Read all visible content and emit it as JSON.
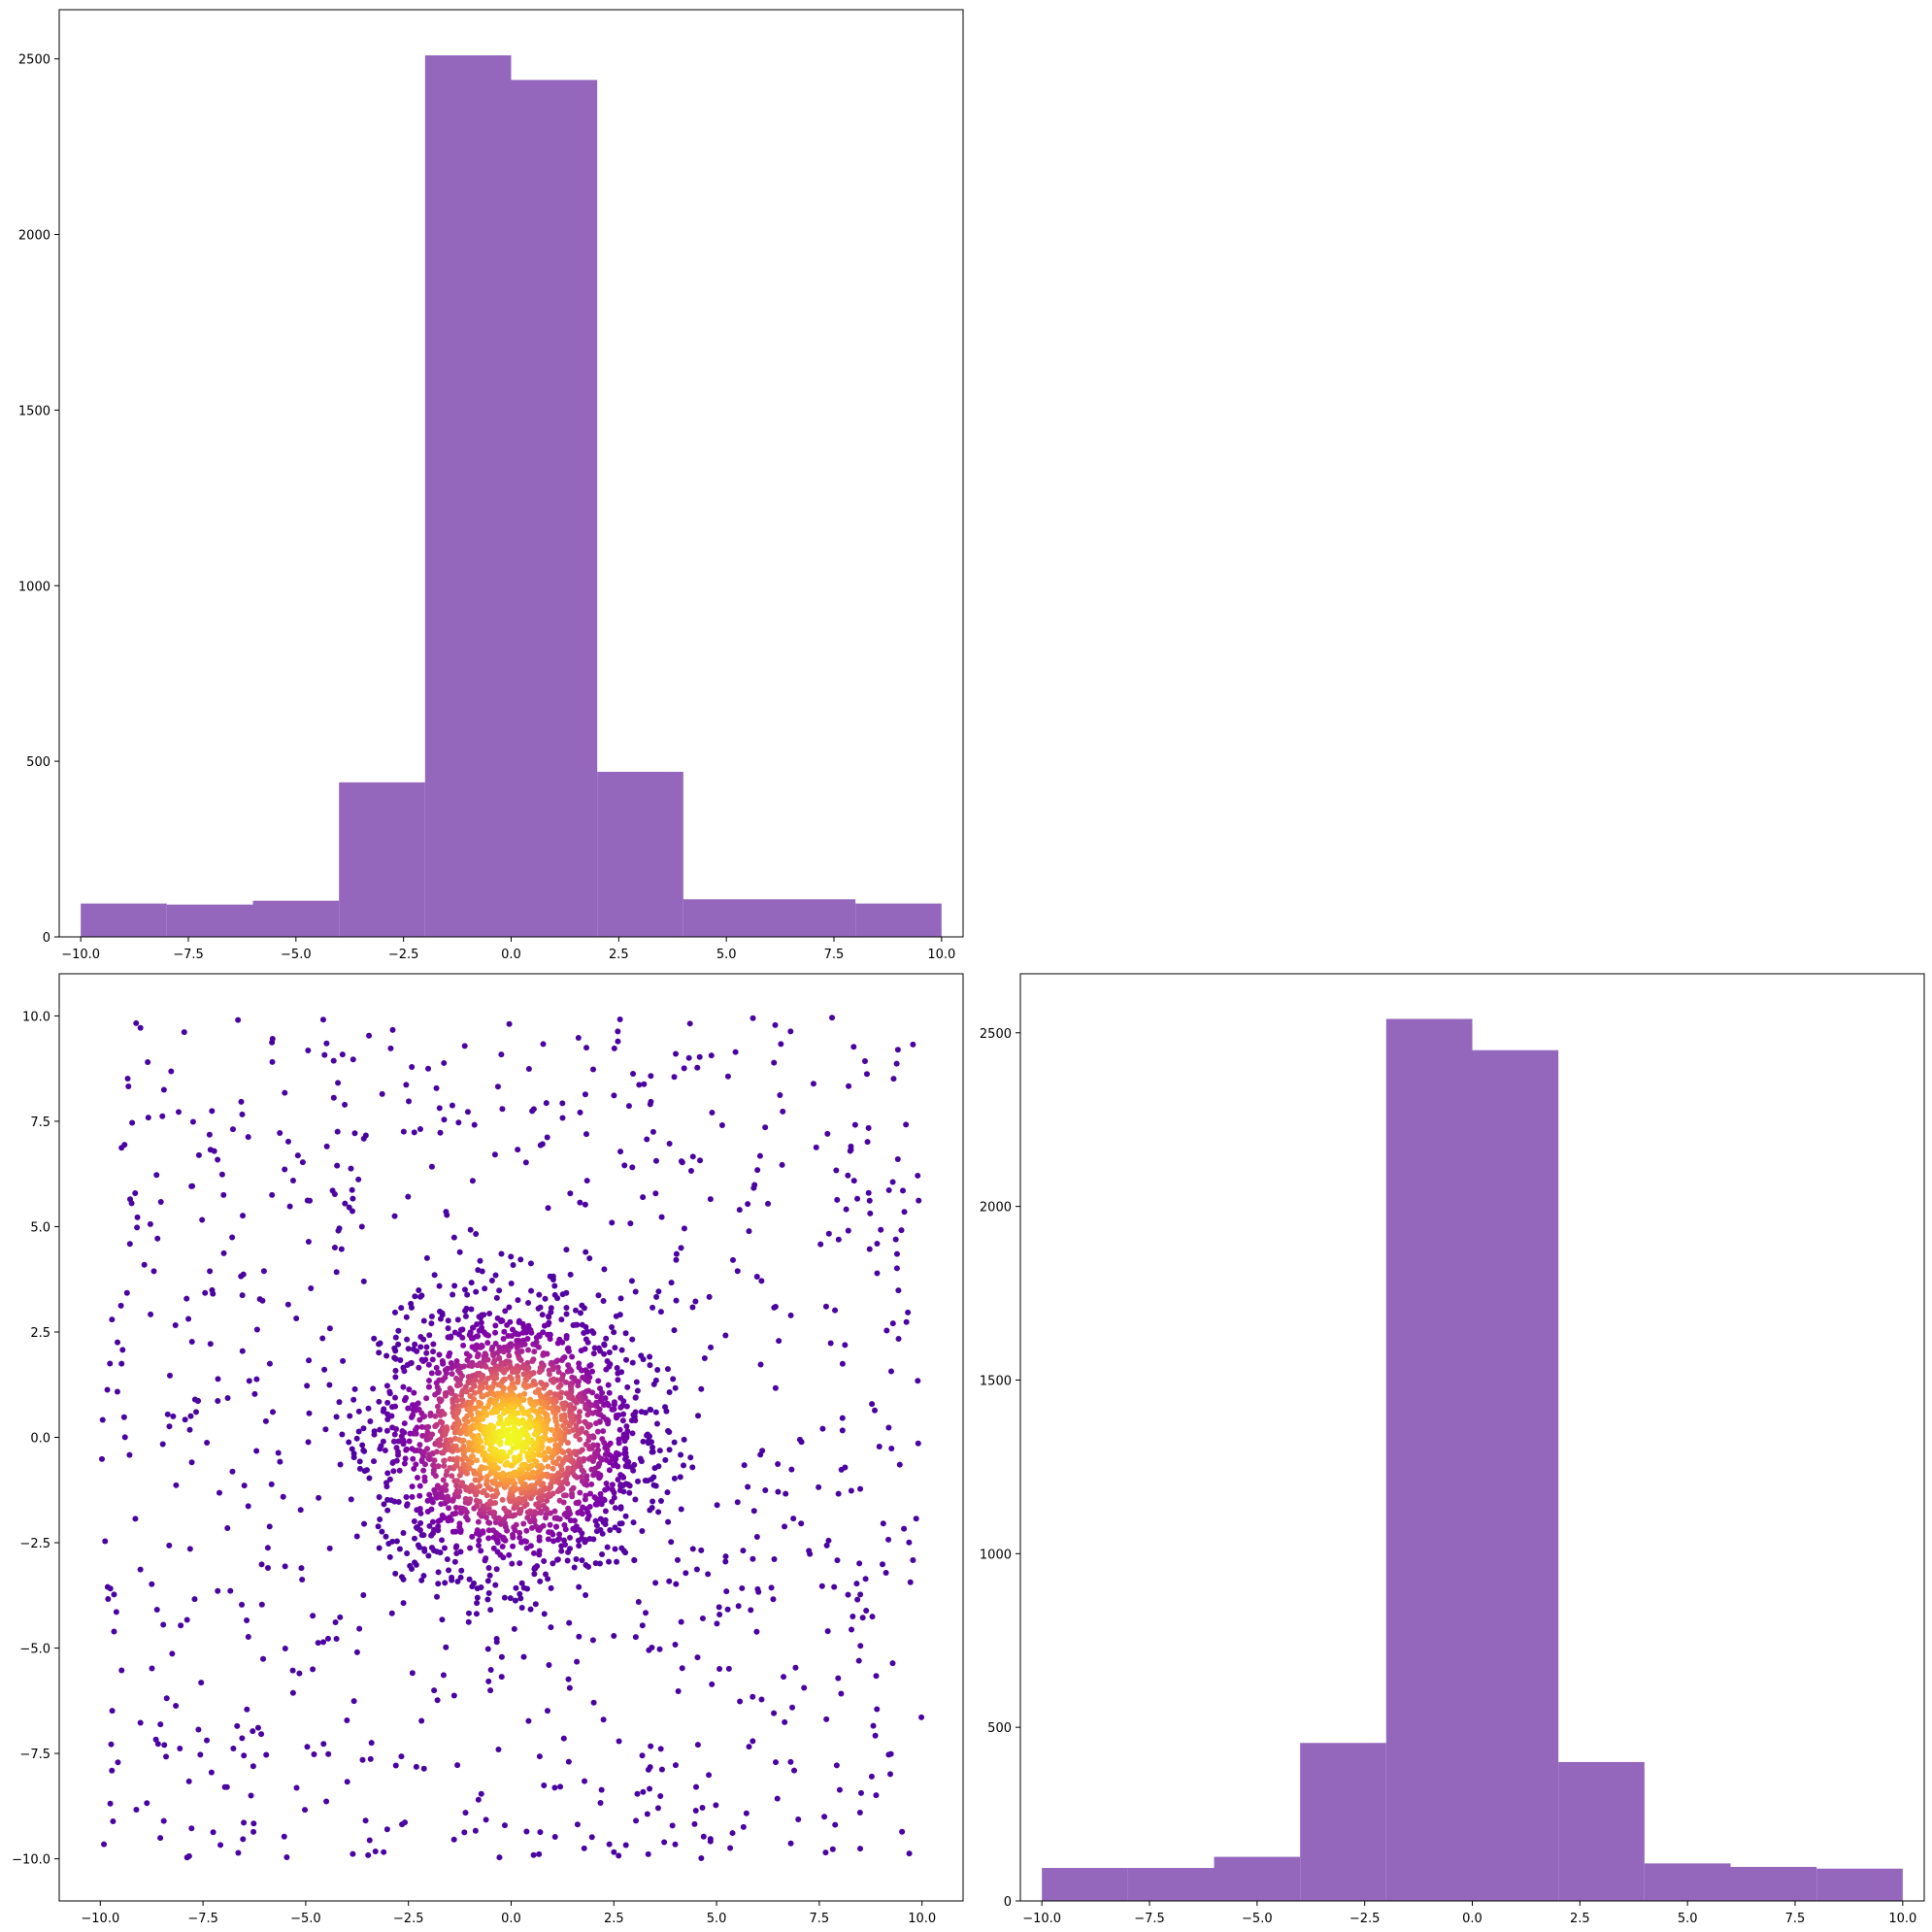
{
  "colors": {
    "bar": "#9467bd",
    "scatter_low": "#3c049b",
    "scatter_mid": "#b52f8c",
    "scatter_high": "#f0f921",
    "axis": "#000000"
  },
  "scatter_cloud": {
    "core_count": 2200,
    "background_count": 900,
    "core_sigma": 1.6,
    "core_radius_limit": 4.3
  },
  "chart_data": [
    {
      "type": "bar",
      "panel": "top-left",
      "bin_edges": [
        -10,
        -8,
        -6,
        -4,
        -2,
        0,
        2,
        4,
        6,
        8,
        10
      ],
      "values": [
        95,
        92,
        103,
        440,
        2510,
        2440,
        470,
        107,
        107,
        95
      ],
      "xlim": [
        -10.5,
        10.5
      ],
      "ylim": [
        0,
        2640
      ],
      "xticks": [
        -10.0,
        -7.5,
        -5.0,
        -2.5,
        0.0,
        2.5,
        5.0,
        7.5,
        10.0
      ],
      "xtick_labels": [
        "−10.0",
        "−7.5",
        "−5.0",
        "−2.5",
        "0.0",
        "2.5",
        "5.0",
        "7.5",
        "10.0"
      ],
      "yticks": [
        0,
        500,
        1000,
        1500,
        2000,
        2500
      ],
      "ytick_labels": [
        "0",
        "500",
        "1000",
        "1500",
        "2000",
        "2500"
      ],
      "grid": false
    },
    {
      "type": "scatter",
      "panel": "bottom-left",
      "description_of_points": "dense gaussian core around (0,0) with uniform background in [-10,10]x[-10,10], colored by density (plasma)",
      "xlim": [
        -11,
        11
      ],
      "ylim": [
        -11,
        11
      ],
      "xticks": [
        -10.0,
        -7.5,
        -5.0,
        -2.5,
        0.0,
        2.5,
        5.0,
        7.5,
        10.0
      ],
      "xtick_labels": [
        "−10.0",
        "−7.5",
        "−5.0",
        "−2.5",
        "0.0",
        "2.5",
        "5.0",
        "7.5",
        "10.0"
      ],
      "yticks": [
        -10.0,
        -7.5,
        -5.0,
        -2.5,
        0.0,
        2.5,
        5.0,
        7.5,
        10.0
      ],
      "ytick_labels": [
        "−10.0",
        "−7.5",
        "−5.0",
        "−2.5",
        "0.0",
        "2.5",
        "5.0",
        "7.5",
        "10.0"
      ],
      "grid": false
    },
    {
      "type": "bar",
      "panel": "bottom-right",
      "bin_edges": [
        -10,
        -8,
        -6,
        -4,
        -2,
        0,
        2,
        4,
        6,
        8,
        10
      ],
      "values": [
        95,
        95,
        127,
        455,
        2540,
        2450,
        400,
        108,
        98,
        93
      ],
      "xlim": [
        -10.5,
        10.5
      ],
      "ylim": [
        0,
        2670
      ],
      "xticks": [
        -10.0,
        -7.5,
        -5.0,
        -2.5,
        0.0,
        2.5,
        5.0,
        7.5,
        10.0
      ],
      "xtick_labels": [
        "−10.0",
        "−7.5",
        "−5.0",
        "−2.5",
        "0.0",
        "2.5",
        "5.0",
        "7.5",
        "10.0"
      ],
      "yticks": [
        0,
        500,
        1000,
        1500,
        2000,
        2500
      ],
      "ytick_labels": [
        "0",
        "500",
        "1000",
        "1500",
        "2000",
        "2500"
      ],
      "grid": false
    }
  ]
}
